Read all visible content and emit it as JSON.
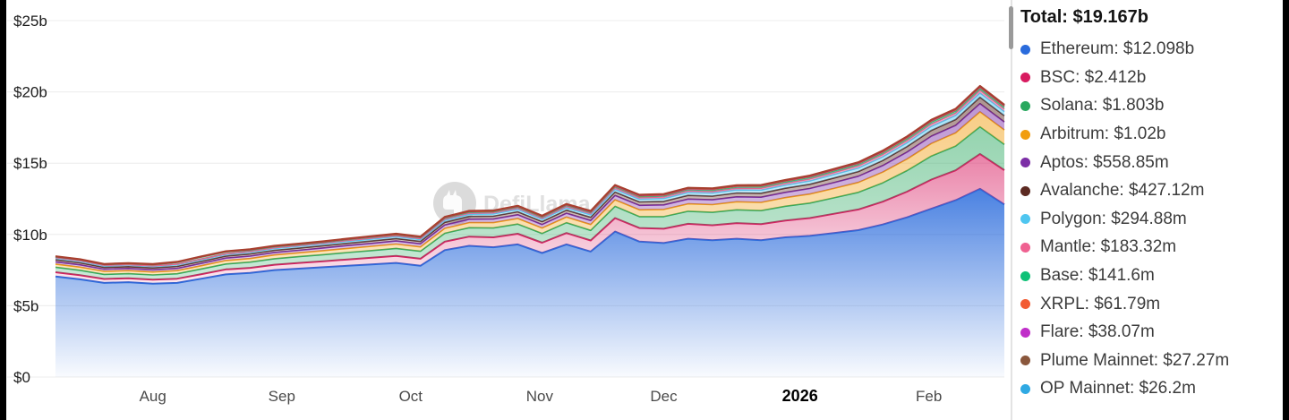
{
  "legend": {
    "total_label": "Total: $19.167b",
    "items": [
      {
        "name": "Ethereum",
        "value": "$12.098b",
        "color": "#2a6bdc"
      },
      {
        "name": "BSC",
        "value": "$2.412b",
        "color": "#d81b60"
      },
      {
        "name": "Solana",
        "value": "$1.803b",
        "color": "#2aa85f"
      },
      {
        "name": "Arbitrum",
        "value": "$1.02b",
        "color": "#f19d0f"
      },
      {
        "name": "Aptos",
        "value": "$558.85m",
        "color": "#7c2ea6"
      },
      {
        "name": "Avalanche",
        "value": "$427.12m",
        "color": "#5c2a22"
      },
      {
        "name": "Polygon",
        "value": "$294.88m",
        "color": "#4fc6f0"
      },
      {
        "name": "Mantle",
        "value": "$183.32m",
        "color": "#ef6191"
      },
      {
        "name": "Base",
        "value": "$141.6m",
        "color": "#0fc177"
      },
      {
        "name": "XRPL",
        "value": "$61.79m",
        "color": "#f25c33"
      },
      {
        "name": "Flare",
        "value": "$38.07m",
        "color": "#c02ec9"
      },
      {
        "name": "Plume Mainnet",
        "value": "$27.27m",
        "color": "#8a573c"
      },
      {
        "name": "OP Mainnet",
        "value": "$26.2m",
        "color": "#2fa9e3"
      }
    ]
  },
  "chart_data": {
    "type": "area",
    "stacked": true,
    "title": "Total: $19.167b",
    "unit": "USD billions (TVL)",
    "watermark": "DefiLlama",
    "ylim": [
      0,
      25
    ],
    "y_ticks": [
      0,
      5,
      10,
      15,
      20,
      25
    ],
    "y_tick_labels": [
      "$0",
      "$5b",
      "$10b",
      "$15b",
      "$20b",
      "$25b"
    ],
    "x_tick_labels": [
      "Aug",
      "Sep",
      "Oct",
      "Nov",
      "Dec",
      "2026",
      "Feb"
    ],
    "x_tick_index": [
      4,
      9.3,
      14.6,
      19.9,
      25,
      30.6,
      35.9
    ],
    "total_line_color": "#a8402f",
    "grid": true,
    "legend_position": "right",
    "series": [
      {
        "name": "Ethereum",
        "color": "#2a6bdc",
        "values": [
          7.05,
          6.85,
          6.6,
          6.65,
          6.55,
          6.6,
          6.9,
          7.2,
          7.3,
          7.5,
          7.6,
          7.7,
          7.8,
          7.9,
          8.0,
          7.8,
          8.9,
          9.2,
          9.1,
          9.3,
          8.7,
          9.3,
          8.8,
          10.2,
          9.5,
          9.4,
          9.7,
          9.6,
          9.7,
          9.6,
          9.8,
          9.9,
          10.1,
          10.3,
          10.7,
          11.2,
          11.8,
          12.4,
          13.2,
          12.1
        ]
      },
      {
        "name": "BSC",
        "color": "#d81b60",
        "values": [
          0.3,
          0.3,
          0.28,
          0.28,
          0.28,
          0.3,
          0.32,
          0.35,
          0.36,
          0.38,
          0.4,
          0.42,
          0.45,
          0.47,
          0.5,
          0.5,
          0.6,
          0.65,
          0.7,
          0.75,
          0.72,
          0.8,
          0.78,
          0.95,
          0.95,
          1.0,
          1.05,
          1.05,
          1.1,
          1.12,
          1.18,
          1.25,
          1.35,
          1.45,
          1.6,
          1.8,
          2.05,
          2.1,
          2.45,
          2.41
        ]
      },
      {
        "name": "Solana",
        "color": "#2aa85f",
        "values": [
          0.35,
          0.34,
          0.32,
          0.32,
          0.33,
          0.34,
          0.36,
          0.38,
          0.4,
          0.42,
          0.44,
          0.46,
          0.48,
          0.5,
          0.52,
          0.52,
          0.58,
          0.62,
          0.65,
          0.68,
          0.65,
          0.72,
          0.7,
          0.82,
          0.8,
          0.85,
          0.88,
          0.9,
          0.93,
          0.95,
          1.0,
          1.05,
          1.12,
          1.2,
          1.32,
          1.48,
          1.65,
          1.7,
          1.9,
          1.8
        ]
      },
      {
        "name": "Arbitrum",
        "color": "#f19d0f",
        "values": [
          0.22,
          0.22,
          0.21,
          0.21,
          0.21,
          0.22,
          0.23,
          0.24,
          0.25,
          0.26,
          0.27,
          0.28,
          0.29,
          0.3,
          0.31,
          0.31,
          0.35,
          0.36,
          0.38,
          0.39,
          0.38,
          0.4,
          0.42,
          0.46,
          0.48,
          0.5,
          0.52,
          0.54,
          0.56,
          0.58,
          0.6,
          0.63,
          0.66,
          0.7,
          0.75,
          0.81,
          0.88,
          0.92,
          1.05,
          1.02
        ]
      },
      {
        "name": "Aptos",
        "color": "#7c2ea6",
        "values": [
          0.16,
          0.16,
          0.15,
          0.15,
          0.15,
          0.16,
          0.16,
          0.17,
          0.17,
          0.18,
          0.18,
          0.19,
          0.2,
          0.2,
          0.21,
          0.21,
          0.23,
          0.24,
          0.25,
          0.26,
          0.25,
          0.27,
          0.28,
          0.3,
          0.31,
          0.32,
          0.33,
          0.34,
          0.35,
          0.36,
          0.37,
          0.39,
          0.41,
          0.43,
          0.46,
          0.49,
          0.52,
          0.53,
          0.58,
          0.56
        ]
      },
      {
        "name": "Avalanche",
        "color": "#5c2a22",
        "values": [
          0.14,
          0.14,
          0.13,
          0.13,
          0.13,
          0.14,
          0.14,
          0.14,
          0.15,
          0.15,
          0.15,
          0.16,
          0.16,
          0.17,
          0.17,
          0.17,
          0.19,
          0.19,
          0.2,
          0.21,
          0.2,
          0.21,
          0.22,
          0.24,
          0.24,
          0.25,
          0.26,
          0.26,
          0.27,
          0.28,
          0.29,
          0.3,
          0.32,
          0.33,
          0.35,
          0.38,
          0.4,
          0.41,
          0.44,
          0.43
        ]
      },
      {
        "name": "Polygon",
        "color": "#4fc6f0",
        "values": [
          0.12,
          0.12,
          0.11,
          0.11,
          0.11,
          0.12,
          0.12,
          0.12,
          0.13,
          0.13,
          0.13,
          0.13,
          0.14,
          0.14,
          0.14,
          0.14,
          0.15,
          0.16,
          0.16,
          0.17,
          0.16,
          0.17,
          0.18,
          0.19,
          0.19,
          0.2,
          0.2,
          0.21,
          0.21,
          0.22,
          0.22,
          0.23,
          0.24,
          0.25,
          0.26,
          0.27,
          0.28,
          0.29,
          0.3,
          0.295
        ]
      },
      {
        "name": "Mantle",
        "color": "#ef6191",
        "values": [
          0.04,
          0.04,
          0.04,
          0.04,
          0.04,
          0.04,
          0.05,
          0.05,
          0.05,
          0.05,
          0.06,
          0.06,
          0.06,
          0.07,
          0.07,
          0.07,
          0.08,
          0.08,
          0.09,
          0.09,
          0.09,
          0.1,
          0.1,
          0.11,
          0.11,
          0.11,
          0.12,
          0.12,
          0.12,
          0.13,
          0.13,
          0.14,
          0.14,
          0.15,
          0.16,
          0.16,
          0.17,
          0.17,
          0.19,
          0.183
        ]
      },
      {
        "name": "Base",
        "color": "#0fc177",
        "values": [
          0.05,
          0.05,
          0.05,
          0.06,
          0.08,
          0.12,
          0.14,
          0.13,
          0.1,
          0.08,
          0.07,
          0.06,
          0.06,
          0.06,
          0.06,
          0.06,
          0.07,
          0.07,
          0.07,
          0.08,
          0.08,
          0.08,
          0.08,
          0.09,
          0.09,
          0.09,
          0.1,
          0.1,
          0.1,
          0.11,
          0.11,
          0.11,
          0.12,
          0.12,
          0.13,
          0.13,
          0.14,
          0.14,
          0.15,
          0.142
        ]
      },
      {
        "name": "XRPL",
        "color": "#f25c33",
        "values": [
          0.01,
          0.01,
          0.01,
          0.01,
          0.01,
          0.01,
          0.01,
          0.01,
          0.02,
          0.02,
          0.02,
          0.02,
          0.02,
          0.02,
          0.02,
          0.02,
          0.03,
          0.03,
          0.03,
          0.03,
          0.03,
          0.03,
          0.03,
          0.04,
          0.04,
          0.04,
          0.04,
          0.04,
          0.04,
          0.05,
          0.05,
          0.05,
          0.05,
          0.05,
          0.05,
          0.06,
          0.06,
          0.06,
          0.06,
          0.062
        ]
      },
      {
        "name": "Flare",
        "color": "#c02ec9",
        "values": [
          0.01,
          0.01,
          0.01,
          0.01,
          0.01,
          0.01,
          0.01,
          0.01,
          0.01,
          0.01,
          0.01,
          0.01,
          0.02,
          0.02,
          0.02,
          0.02,
          0.02,
          0.02,
          0.02,
          0.02,
          0.02,
          0.02,
          0.02,
          0.03,
          0.03,
          0.03,
          0.03,
          0.03,
          0.03,
          0.03,
          0.03,
          0.03,
          0.03,
          0.03,
          0.04,
          0.04,
          0.04,
          0.04,
          0.04,
          0.038
        ]
      },
      {
        "name": "Plume Mainnet",
        "color": "#8a573c",
        "values": [
          0,
          0,
          0,
          0,
          0,
          0,
          0,
          0,
          0,
          0,
          0.005,
          0.005,
          0.005,
          0.01,
          0.01,
          0.01,
          0.01,
          0.01,
          0.01,
          0.01,
          0.015,
          0.015,
          0.015,
          0.02,
          0.02,
          0.02,
          0.02,
          0.02,
          0.02,
          0.02,
          0.02,
          0.02,
          0.025,
          0.025,
          0.025,
          0.025,
          0.025,
          0.025,
          0.03,
          0.027
        ]
      },
      {
        "name": "OP Mainnet",
        "color": "#2fa9e3",
        "values": [
          0.02,
          0.02,
          0.02,
          0.02,
          0.02,
          0.02,
          0.02,
          0.02,
          0.02,
          0.02,
          0.02,
          0.02,
          0.02,
          0.02,
          0.02,
          0.02,
          0.02,
          0.02,
          0.02,
          0.02,
          0.02,
          0.02,
          0.02,
          0.02,
          0.02,
          0.02,
          0.02,
          0.02,
          0.02,
          0.02,
          0.02,
          0.025,
          0.025,
          0.025,
          0.025,
          0.025,
          0.025,
          0.025,
          0.026,
          0.026
        ]
      }
    ]
  }
}
